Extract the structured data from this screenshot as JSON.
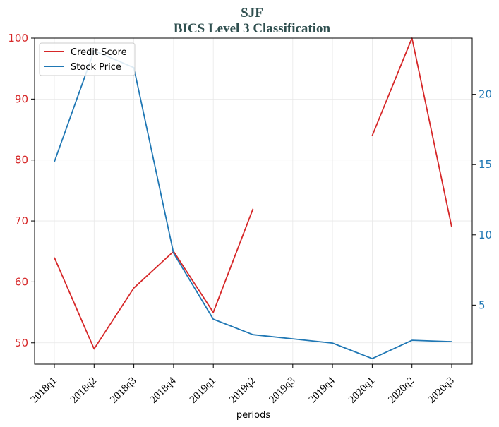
{
  "chart_data": {
    "type": "line",
    "title": "SJF",
    "subtitle": "BICS Level 3 Classification",
    "xlabel": "periods",
    "categories": [
      "2018q1",
      "2018q2",
      "2018q3",
      "2018q4",
      "2019q1",
      "2019q2",
      "2019q3",
      "2019q4",
      "2020q1",
      "2020q2",
      "2020q3"
    ],
    "left_axis": {
      "ylim": [
        46.5,
        100
      ],
      "ticks": [
        50,
        60,
        70,
        80,
        90,
        100
      ],
      "color": "#d62728"
    },
    "right_axis": {
      "ylim": [
        0.8,
        24
      ],
      "ticks": [
        5,
        10,
        15,
        20
      ],
      "color": "#1f77b4"
    },
    "grid": true,
    "legend_position": "top-left",
    "series": [
      {
        "name": "Credit Score",
        "axis": "left",
        "color": "#d62728",
        "values": [
          64,
          49,
          59,
          65,
          55,
          72,
          null,
          null,
          84,
          100,
          69
        ]
      },
      {
        "name": "Stock Price",
        "axis": "right",
        "color": "#1f77b4",
        "values": [
          15.2,
          23.1,
          21.9,
          8.7,
          4.0,
          2.9,
          2.6,
          2.3,
          1.2,
          2.5,
          2.4
        ]
      }
    ]
  }
}
